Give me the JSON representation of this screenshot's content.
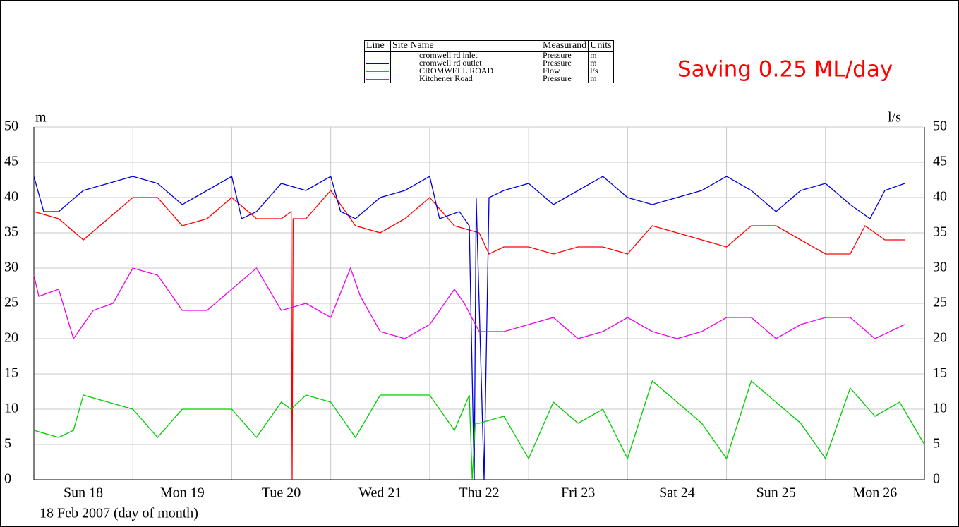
{
  "chart_data": {
    "type": "line",
    "title": "Saving 0.25 ML/day",
    "xlabel": "18 Feb 2007 (day of month)",
    "ylabel": "m",
    "y2label": "l/s",
    "legend_headers": [
      "Line",
      "Site Name",
      "Measurand",
      "Units"
    ],
    "xlim": [
      18,
      27
    ],
    "xticks": [
      {
        "value": 18.5,
        "label": "Sun 18"
      },
      {
        "value": 19.5,
        "label": "Mon 19"
      },
      {
        "value": 20.5,
        "label": "Tue 20"
      },
      {
        "value": 21.5,
        "label": "Wed 21"
      },
      {
        "value": 22.5,
        "label": "Thu 22"
      },
      {
        "value": 23.5,
        "label": "Fri 23"
      },
      {
        "value": 24.5,
        "label": "Sat 24"
      },
      {
        "value": 25.5,
        "label": "Sun 25"
      },
      {
        "value": 26.5,
        "label": "Mon 26"
      }
    ],
    "xgrid": [
      19,
      20,
      21,
      22,
      23,
      24,
      25,
      26,
      27
    ],
    "ylim": [
      0,
      50
    ],
    "yticks": [
      0,
      5,
      10,
      15,
      20,
      25,
      30,
      35,
      40,
      45,
      50
    ],
    "y2lim": [
      0,
      50
    ],
    "y2ticks": [
      0,
      5,
      10,
      15,
      20,
      25,
      30,
      35,
      40,
      45,
      50
    ],
    "grid": true,
    "series": [
      {
        "name": "cromwell rd inlet",
        "measurand": "Pressure",
        "units": "m",
        "color": "#ff0000",
        "x": [
          18,
          18.25,
          18.5,
          18.75,
          19,
          19.25,
          19.5,
          19.75,
          20,
          20.25,
          20.5,
          20.6,
          20.61,
          20.62,
          20.75,
          21,
          21.25,
          21.5,
          21.75,
          22,
          22.25,
          22.5,
          22.6,
          22.75,
          23,
          23.25,
          23.5,
          23.75,
          24,
          24.25,
          24.5,
          24.75,
          25,
          25.25,
          25.5,
          25.75,
          26,
          26.25,
          26.4,
          26.6,
          26.8
        ],
        "values": [
          38,
          37,
          34,
          37,
          40,
          40,
          36,
          37,
          40,
          37,
          37,
          38,
          0,
          37,
          37,
          41,
          36,
          35,
          37,
          40,
          36,
          35,
          32,
          33,
          33,
          32,
          33,
          33,
          32,
          36,
          35,
          34,
          33,
          36,
          36,
          34,
          32,
          32,
          36,
          34,
          34
        ]
      },
      {
        "name": "cromwell rd outlet",
        "measurand": "Pressure",
        "units": "m",
        "color": "#0000dd",
        "x": [
          18,
          18.1,
          18.25,
          18.5,
          18.75,
          19,
          19.25,
          19.5,
          19.75,
          20,
          20.1,
          20.25,
          20.5,
          20.75,
          21,
          21.1,
          21.25,
          21.5,
          21.75,
          22,
          22.1,
          22.3,
          22.4,
          22.45,
          22.47,
          22.55,
          22.6,
          22.75,
          23,
          23.25,
          23.5,
          23.75,
          24,
          24.25,
          24.5,
          24.75,
          25,
          25.25,
          25.5,
          25.75,
          26,
          26.25,
          26.45,
          26.6,
          26.8
        ],
        "values": [
          43,
          38,
          38,
          41,
          42,
          43,
          42,
          39,
          41,
          43,
          37,
          38,
          42,
          41,
          43,
          38,
          37,
          40,
          41,
          43,
          37,
          38,
          36,
          0,
          40,
          0,
          40,
          41,
          42,
          39,
          41,
          43,
          40,
          39,
          40,
          41,
          43,
          41,
          38,
          41,
          42,
          39,
          37,
          41,
          42
        ]
      },
      {
        "name": "CROMWELL ROAD",
        "measurand": "Flow",
        "units": "l/s",
        "color": "#00cc00",
        "axis": "y2",
        "x": [
          18,
          18.25,
          18.4,
          18.5,
          18.75,
          19,
          19.25,
          19.5,
          19.75,
          20,
          20.25,
          20.5,
          20.6,
          20.75,
          21,
          21.25,
          21.5,
          21.75,
          22,
          22.25,
          22.4,
          22.43,
          22.46,
          22.5,
          22.75,
          23,
          23.25,
          23.5,
          23.75,
          24,
          24.25,
          24.5,
          24.75,
          25,
          25.25,
          25.5,
          25.75,
          26,
          26.25,
          26.5,
          26.75,
          27
        ],
        "values": [
          7,
          6,
          7,
          12,
          11,
          10,
          6,
          10,
          10,
          10,
          6,
          11,
          10,
          12,
          11,
          6,
          12,
          12,
          12,
          7,
          12,
          0,
          8,
          8,
          9,
          3,
          11,
          8,
          10,
          3,
          14,
          11,
          8,
          3,
          14,
          11,
          8,
          3,
          13,
          9,
          11,
          5
        ]
      },
      {
        "name": "Kitchener Road",
        "measurand": "Pressure",
        "units": "m",
        "color": "#ee00ee",
        "x": [
          18,
          18.05,
          18.25,
          18.4,
          18.6,
          18.8,
          19,
          19.25,
          19.5,
          19.75,
          20,
          20.25,
          20.5,
          20.75,
          21,
          21.2,
          21.3,
          21.5,
          21.75,
          22,
          22.25,
          22.35,
          22.5,
          22.75,
          23,
          23.25,
          23.5,
          23.75,
          24,
          24.25,
          24.5,
          24.75,
          25,
          25.25,
          25.5,
          25.75,
          26,
          26.25,
          26.5,
          26.8
        ],
        "values": [
          29,
          26,
          27,
          20,
          24,
          25,
          30,
          29,
          24,
          24,
          27,
          30,
          24,
          25,
          23,
          30,
          26,
          21,
          20,
          22,
          27,
          25,
          21,
          21,
          22,
          23,
          20,
          21,
          23,
          21,
          20,
          21,
          23,
          23,
          20,
          22,
          23,
          23,
          20,
          22
        ]
      }
    ]
  }
}
